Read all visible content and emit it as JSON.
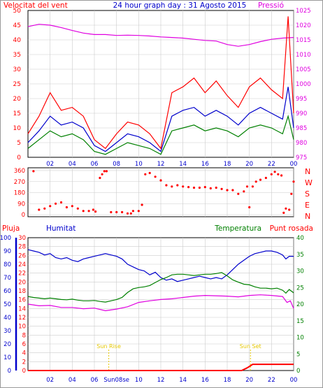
{
  "header": {
    "left_title": "Velocitat del vent",
    "center_title": "24 hour graph day : 31 Agosto 2015",
    "right_title": "Pressió"
  },
  "colors": {
    "red": "#ff0000",
    "blue": "#0000cc",
    "green": "#008000",
    "magenta": "#e000e0",
    "yellow": "#e6c800",
    "grid": "#cccccc",
    "frame": "#000000"
  },
  "chart_data": [
    {
      "type": "line",
      "title": "24 hour graph day : 31 Agosto 2015",
      "x_ticks": [
        "02",
        "04",
        "06",
        "08",
        "10",
        "12",
        "14",
        "16",
        "18",
        "20",
        "22",
        "00"
      ],
      "left_axis": {
        "label": "Velocitat del vent",
        "ticks": [
          0,
          5,
          10,
          15,
          20,
          25,
          30,
          35,
          40,
          45,
          50
        ],
        "range": [
          0,
          50
        ]
      },
      "right_axis": {
        "label": "Pressió",
        "ticks": [
          975,
          980,
          985,
          990,
          995,
          1000,
          1005,
          1010,
          1015,
          1020,
          1025
        ],
        "range": [
          975,
          1025
        ]
      },
      "series": [
        {
          "name": "Pressió",
          "color": "magenta",
          "axis": "right",
          "x": [
            0,
            1,
            2,
            3,
            4,
            5,
            6,
            7,
            8,
            9,
            10,
            11,
            12,
            13,
            14,
            15,
            16,
            17,
            18,
            19,
            20,
            21,
            22,
            23,
            24
          ],
          "values": [
            1019.5,
            1020.3,
            1020,
            1019.2,
            1018.2,
            1017.3,
            1016.8,
            1016.8,
            1016.5,
            1016.6,
            1016.5,
            1016.3,
            1016,
            1015.8,
            1015.6,
            1015.2,
            1014.8,
            1014.6,
            1013.4,
            1012.8,
            1013.4,
            1014.4,
            1015.2,
            1015.6,
            1015.8
          ]
        },
        {
          "name": "Ràfega",
          "color": "red",
          "axis": "left",
          "x": [
            0,
            1,
            2,
            3,
            4,
            5,
            6,
            7,
            8,
            9,
            10,
            11,
            12,
            13,
            14,
            15,
            16,
            17,
            18,
            19,
            20,
            21,
            22,
            23,
            23.5,
            24
          ],
          "values": [
            8,
            14,
            22,
            16,
            17,
            14,
            6,
            3,
            8,
            12,
            11,
            8,
            3,
            22,
            24,
            27,
            22,
            26,
            21,
            17,
            24,
            27,
            23,
            20,
            48,
            15
          ]
        },
        {
          "name": "Velocitat mitjana",
          "color": "blue",
          "axis": "left",
          "x": [
            0,
            1,
            2,
            3,
            4,
            5,
            6,
            7,
            8,
            9,
            10,
            11,
            12,
            13,
            14,
            15,
            16,
            17,
            18,
            19,
            20,
            21,
            22,
            23,
            23.5,
            24
          ],
          "values": [
            5,
            9,
            14,
            11,
            12,
            10,
            4,
            2,
            5,
            8,
            7,
            5,
            2,
            14,
            16,
            17,
            14,
            16,
            14,
            11,
            15,
            17,
            15,
            13,
            24,
            10
          ]
        },
        {
          "name": "Velocitat",
          "color": "green",
          "axis": "left",
          "x": [
            0,
            1,
            2,
            3,
            4,
            5,
            6,
            7,
            8,
            9,
            10,
            11,
            12,
            13,
            14,
            15,
            16,
            17,
            18,
            19,
            20,
            21,
            22,
            23,
            23.5,
            24
          ],
          "values": [
            3,
            6,
            9,
            7,
            8,
            6,
            2,
            1,
            3,
            5,
            4,
            3,
            1,
            9,
            10,
            11,
            9,
            10,
            9,
            7,
            10,
            11,
            10,
            8,
            14,
            6
          ]
        }
      ]
    },
    {
      "type": "scatter",
      "title": "",
      "x_ticks": [],
      "left_axis": {
        "ticks": [
          0,
          90,
          180,
          270,
          360
        ],
        "range": [
          0,
          360
        ]
      },
      "right_axis": {
        "ticks": [
          "N",
          "W",
          "S",
          "E",
          "N"
        ]
      },
      "series": [
        {
          "name": "Direcció del vent",
          "color": "red",
          "x": [
            0.5,
            1,
            1.5,
            2,
            2.5,
            3,
            3.5,
            4,
            4.5,
            5,
            5.5,
            5.9,
            6.1,
            6.5,
            6.7,
            6.9,
            7.1,
            7.5,
            8,
            8.5,
            9,
            9.3,
            9.5,
            10,
            10.3,
            10.6,
            11,
            11.5,
            12,
            12.5,
            13,
            13.5,
            14,
            14.5,
            15,
            15.5,
            16,
            16.5,
            17,
            17.5,
            18,
            18.5,
            19,
            19.5,
            19.8,
            20,
            20.3,
            20.6,
            21,
            21.5,
            22,
            22.3,
            22.6,
            22.9,
            23.1,
            23.3,
            23.6,
            23.8,
            24
          ],
          "values": [
            355,
            40,
            50,
            70,
            90,
            100,
            60,
            70,
            50,
            30,
            30,
            40,
            25,
            300,
            330,
            355,
            355,
            20,
            20,
            20,
            10,
            10,
            30,
            30,
            80,
            330,
            340,
            310,
            280,
            240,
            230,
            240,
            230,
            225,
            220,
            220,
            225,
            215,
            220,
            210,
            200,
            200,
            170,
            190,
            230,
            60,
            230,
            270,
            285,
            300,
            330,
            350,
            330,
            320,
            15,
            50,
            40,
            170,
            270
          ]
        }
      ]
    },
    {
      "type": "line",
      "title": "",
      "x_ticks": [
        "02",
        "04",
        "06",
        "Sun08se",
        "10",
        "12",
        "14",
        "16",
        "18",
        "20",
        "22",
        "00"
      ],
      "labels": {
        "pluja": "Pluja",
        "humitat": "Humitat",
        "temperatura": "Temperatura",
        "punt_rosada": "Punt rosada"
      },
      "axes": {
        "humitat": {
          "ticks": [
            0,
            10,
            20,
            30,
            40,
            50,
            60,
            70,
            80,
            90,
            100
          ],
          "range": [
            0,
            100
          ]
        },
        "pluja": {
          "ticks": [
            0,
            2,
            4,
            6,
            8,
            10,
            12,
            14,
            16,
            18,
            20,
            22,
            24,
            26,
            28,
            30
          ],
          "range": [
            0,
            30
          ]
        },
        "temp": {
          "ticks": [
            0,
            5,
            10,
            15,
            20,
            25,
            30,
            35,
            40
          ],
          "range": [
            0,
            40
          ]
        }
      },
      "annotations": [
        {
          "text": "Sun Rise",
          "x": 7.3
        },
        {
          "text": "Sun Set",
          "x": 20.1
        }
      ],
      "series": [
        {
          "name": "Humitat",
          "color": "blue",
          "axis": "humitat",
          "x": [
            0,
            0.5,
            1,
            1.5,
            2,
            2.5,
            3,
            3.5,
            4,
            4.5,
            5,
            5.5,
            6,
            6.5,
            7,
            7.5,
            8,
            8.5,
            9,
            9.5,
            10,
            10.5,
            11,
            11.5,
            12,
            12.5,
            13,
            13.5,
            14,
            14.5,
            15,
            15.5,
            16,
            16.5,
            17,
            17.5,
            18,
            18.5,
            19,
            19.5,
            20,
            20.5,
            21,
            21.5,
            22,
            22.5,
            23,
            23.3,
            23.6,
            24
          ],
          "values": [
            91,
            90,
            89,
            87,
            88,
            85,
            84,
            85,
            83,
            82,
            84,
            85,
            86,
            87,
            88,
            87,
            86,
            84,
            80,
            78,
            76,
            75,
            72,
            74,
            70,
            68,
            69,
            67,
            68,
            69,
            70,
            71,
            70,
            69,
            70,
            69,
            72,
            76,
            80,
            83,
            86,
            88,
            89,
            90,
            90,
            89,
            87,
            84,
            86,
            86
          ]
        },
        {
          "name": "Temperatura",
          "color": "green",
          "axis": "temp",
          "x": [
            0,
            0.5,
            1,
            1.5,
            2,
            2.5,
            3,
            3.5,
            4,
            4.5,
            5,
            5.5,
            6,
            6.5,
            7,
            7.5,
            8,
            8.5,
            9,
            9.5,
            10,
            10.5,
            11,
            11.5,
            12,
            12.5,
            13,
            13.5,
            14,
            14.5,
            15,
            15.5,
            16,
            16.5,
            17,
            17.5,
            18,
            18.5,
            19,
            19.5,
            20,
            20.5,
            21,
            21.5,
            22,
            22.5,
            23,
            23.3,
            23.6,
            24
          ],
          "values": [
            22.3,
            22,
            21.8,
            21.6,
            21.8,
            21.6,
            21.4,
            21.3,
            21.5,
            21.2,
            21,
            21,
            21.1,
            20.8,
            20.6,
            21,
            21.4,
            22,
            23.5,
            24.6,
            25,
            25.2,
            25.6,
            26.5,
            27.4,
            28,
            28.8,
            29,
            29,
            28.8,
            28.6,
            28.8,
            29,
            29,
            29.2,
            29.5,
            28.5,
            27.3,
            26.6,
            26,
            25.8,
            25.2,
            24.8,
            24.8,
            24.6,
            24.8,
            24.2,
            23.3,
            24.4,
            23.4
          ]
        },
        {
          "name": "Punt rosada",
          "color": "magenta",
          "axis": "temp",
          "x": [
            0,
            1,
            2,
            3,
            4,
            5,
            6,
            7,
            8,
            9,
            10,
            11,
            12,
            13,
            14,
            15,
            16,
            17,
            18,
            19,
            20,
            21,
            22,
            23,
            23.4,
            23.7,
            24
          ],
          "values": [
            20,
            19.5,
            19.6,
            19,
            19,
            18.6,
            18.8,
            18,
            18.5,
            19.2,
            20.5,
            21,
            21.4,
            21.6,
            22,
            22.4,
            22.6,
            22.5,
            22.4,
            22.2,
            22.6,
            22.8,
            22.6,
            22.3,
            20.5,
            21,
            18.7
          ]
        },
        {
          "name": "Pluja",
          "color": "red",
          "axis": "pluja",
          "x": [
            0,
            19.3,
            19.8,
            20.3,
            24
          ],
          "values": [
            0,
            0,
            0.6,
            1.4,
            1.4
          ]
        }
      ]
    }
  ]
}
